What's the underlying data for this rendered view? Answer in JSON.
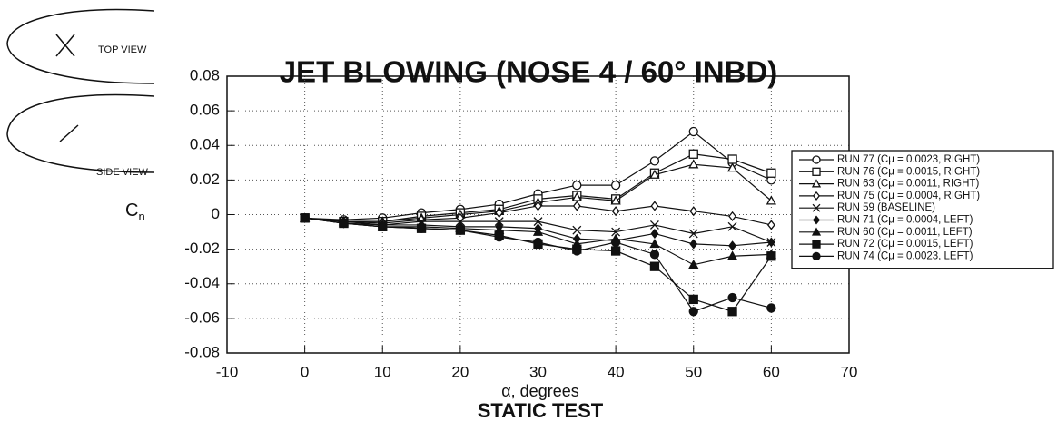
{
  "chart_data": {
    "type": "line",
    "title": "JET BLOWING (NOSE 4 / 60° INBD)",
    "xlabel": "α, degrees",
    "ylabel": "C",
    "ylabel_subscript": "n",
    "footer": "STATIC TEST",
    "annotations": [
      "TOP VIEW",
      "SIDE VIEW"
    ],
    "xlim": [
      -10,
      70
    ],
    "ylim": [
      -0.08,
      0.08
    ],
    "xticks": [
      -10,
      0,
      10,
      20,
      30,
      40,
      50,
      60,
      70
    ],
    "yticks": [
      0.08,
      0.06,
      0.04,
      0.02,
      0,
      -0.02,
      -0.04,
      -0.06,
      -0.08
    ],
    "grid": true,
    "legend": "right",
    "x": [
      0,
      5,
      10,
      15,
      20,
      25,
      30,
      35,
      40,
      45,
      50,
      55,
      60
    ],
    "series": [
      {
        "name": "RUN 77 (Cμ = 0.0023, RIGHT)",
        "color": "#111111",
        "marker": "circle",
        "filled": false,
        "values": [
          -0.002,
          -0.003,
          -0.002,
          0.001,
          0.003,
          0.006,
          0.012,
          0.017,
          0.017,
          0.031,
          0.048,
          0.03,
          0.02
        ]
      },
      {
        "name": "RUN 76 (Cμ = 0.0015, RIGHT)",
        "color": "#111111",
        "marker": "square",
        "filled": false,
        "values": [
          -0.002,
          -0.004,
          -0.004,
          -0.001,
          0.001,
          0.003,
          0.009,
          0.011,
          0.009,
          0.024,
          0.035,
          0.032,
          0.024
        ]
      },
      {
        "name": "RUN 63 (Cμ = 0.0011, RIGHT)",
        "color": "#111111",
        "marker": "triangle",
        "filled": false,
        "values": [
          -0.002,
          -0.004,
          -0.004,
          -0.002,
          0.0,
          0.002,
          0.007,
          0.01,
          0.008,
          0.023,
          0.029,
          0.027,
          0.008
        ]
      },
      {
        "name": "RUN 75 (Cμ = 0.0004, RIGHT)",
        "color": "#111111",
        "marker": "diamond",
        "filled": false,
        "values": [
          -0.002,
          -0.004,
          -0.005,
          -0.003,
          -0.002,
          0.001,
          0.005,
          0.005,
          0.002,
          0.005,
          0.002,
          -0.001,
          -0.006
        ]
      },
      {
        "name": "RUN 59 (BASELINE)",
        "color": "#111111",
        "marker": "x",
        "filled": false,
        "values": [
          -0.002,
          -0.004,
          -0.006,
          -0.004,
          -0.004,
          -0.004,
          -0.004,
          -0.009,
          -0.01,
          -0.006,
          -0.011,
          -0.007,
          -0.016
        ]
      },
      {
        "name": "RUN 71 (Cμ = 0.0004, LEFT)",
        "color": "#111111",
        "marker": "diamond",
        "filled": true,
        "values": [
          -0.002,
          -0.005,
          -0.006,
          -0.006,
          -0.007,
          -0.007,
          -0.008,
          -0.014,
          -0.015,
          -0.011,
          -0.017,
          -0.018,
          -0.016
        ]
      },
      {
        "name": "RUN 60 (Cμ = 0.0011, LEFT)",
        "color": "#111111",
        "marker": "triangle",
        "filled": true,
        "values": [
          -0.002,
          -0.005,
          -0.007,
          -0.007,
          -0.008,
          -0.009,
          -0.01,
          -0.017,
          -0.014,
          -0.017,
          -0.029,
          -0.024,
          -0.023
        ]
      },
      {
        "name": "RUN 72 (Cμ = 0.0015, LEFT)",
        "color": "#111111",
        "marker": "square",
        "filled": true,
        "values": [
          -0.002,
          -0.005,
          -0.007,
          -0.008,
          -0.009,
          -0.012,
          -0.017,
          -0.02,
          -0.021,
          -0.03,
          -0.049,
          -0.056,
          -0.024
        ]
      },
      {
        "name": "RUN 74 (Cμ = 0.0023, LEFT)",
        "color": "#111111",
        "marker": "circle",
        "filled": true,
        "values": [
          -0.002,
          -0.005,
          -0.007,
          -0.008,
          -0.009,
          -0.013,
          -0.016,
          -0.021,
          -0.016,
          -0.023,
          -0.056,
          -0.048,
          -0.054
        ]
      }
    ]
  }
}
